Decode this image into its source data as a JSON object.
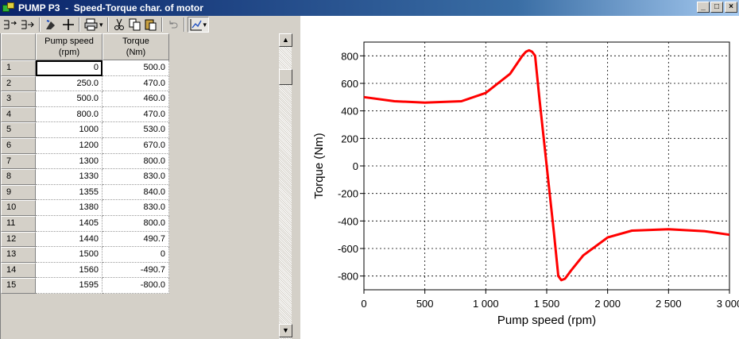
{
  "window": {
    "title": "PUMP P3  -  Speed-Torque char. of motor",
    "buttons": {
      "minimize": "_",
      "maximize": "□",
      "close": "×"
    }
  },
  "toolbar": {
    "icons": [
      "insert-row-icon",
      "append-row-icon",
      "fill-icon",
      "add-point-icon",
      "print-icon",
      "cut-icon",
      "copy-icon",
      "paste-icon",
      "undo-icon",
      "chart-toggle-icon"
    ]
  },
  "table": {
    "headers": [
      {
        "line1": "Pump speed",
        "line2": "(rpm)"
      },
      {
        "line1": "Torque",
        "line2": "(Nm)"
      }
    ],
    "rows": [
      {
        "n": "1",
        "speed": "0",
        "torque": "500.0"
      },
      {
        "n": "2",
        "speed": "250.0",
        "torque": "470.0"
      },
      {
        "n": "3",
        "speed": "500.0",
        "torque": "460.0"
      },
      {
        "n": "4",
        "speed": "800.0",
        "torque": "470.0"
      },
      {
        "n": "5",
        "speed": "1000",
        "torque": "530.0"
      },
      {
        "n": "6",
        "speed": "1200",
        "torque": "670.0"
      },
      {
        "n": "7",
        "speed": "1300",
        "torque": "800.0"
      },
      {
        "n": "8",
        "speed": "1330",
        "torque": "830.0"
      },
      {
        "n": "9",
        "speed": "1355",
        "torque": "840.0"
      },
      {
        "n": "10",
        "speed": "1380",
        "torque": "830.0"
      },
      {
        "n": "11",
        "speed": "1405",
        "torque": "800.0"
      },
      {
        "n": "12",
        "speed": "1440",
        "torque": "490.7"
      },
      {
        "n": "13",
        "speed": "1500",
        "torque": "0"
      },
      {
        "n": "14",
        "speed": "1560",
        "torque": "-490.7"
      },
      {
        "n": "15",
        "speed": "1595",
        "torque": "-800.0"
      }
    ]
  },
  "chart_data": {
    "type": "line",
    "xlabel": "Pump speed (rpm)",
    "ylabel": "Torque (Nm)",
    "xlim": [
      0,
      3000
    ],
    "ylim": [
      -900,
      900
    ],
    "xticks": [
      0,
      500,
      1000,
      1500,
      2000,
      2500,
      3000
    ],
    "xtick_labels": [
      "0",
      "500",
      "1 000",
      "1 500",
      "2 000",
      "2 500",
      "3 000"
    ],
    "yticks": [
      800,
      600,
      400,
      200,
      0,
      -200,
      -400,
      -600,
      -800
    ],
    "grid": true,
    "line_color": "#ff0000",
    "series": [
      {
        "x": [
          0,
          250,
          500,
          800,
          1000,
          1200,
          1300,
          1330,
          1355,
          1380,
          1405,
          1440,
          1500,
          1560,
          1595,
          1620,
          1650,
          1700,
          1800,
          2000,
          2200,
          2500,
          2800,
          3000
        ],
        "y": [
          500,
          470,
          460,
          470,
          530,
          670,
          800,
          830,
          840,
          830,
          800,
          490.7,
          0,
          -490.7,
          -800,
          -830,
          -820,
          -760,
          -650,
          -520,
          -470,
          -460,
          -475,
          -500
        ]
      }
    ]
  }
}
